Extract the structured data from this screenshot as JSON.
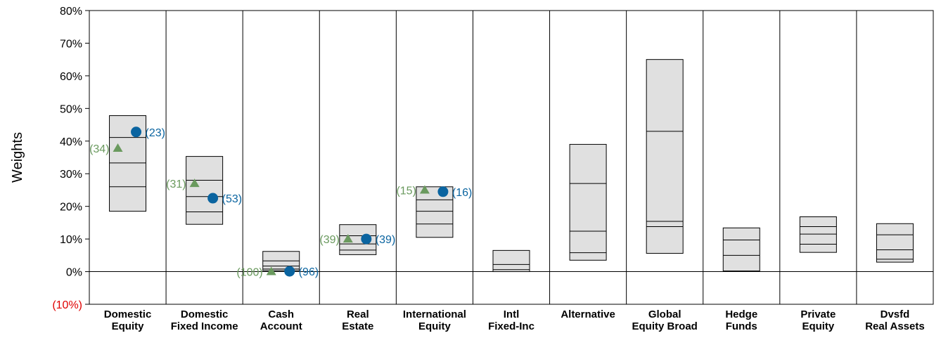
{
  "chart_data": {
    "type": "floating-bar",
    "ylabel": "Weights",
    "ylim": [
      -10,
      80
    ],
    "y_ticks": [
      {
        "value": 80,
        "label": "80%"
      },
      {
        "value": 70,
        "label": "70%"
      },
      {
        "value": 60,
        "label": "60%"
      },
      {
        "value": 50,
        "label": "50%"
      },
      {
        "value": 40,
        "label": "40%"
      },
      {
        "value": 30,
        "label": "30%"
      },
      {
        "value": 20,
        "label": "20%"
      },
      {
        "value": 10,
        "label": "10%"
      },
      {
        "value": 0,
        "label": "0%"
      },
      {
        "value": -10,
        "label": "(10%)"
      }
    ],
    "colors": {
      "negative_tick": "#e00000",
      "box_fill": "#e0e0e0",
      "triangle": "#6a9a5e",
      "circle": "#0a64a0"
    },
    "categories": [
      {
        "line1": "Domestic",
        "line2": "Equity",
        "box": {
          "low": 18.5,
          "high": 47.8,
          "lines": [
            26,
            33.3,
            41.1
          ]
        },
        "triangle": {
          "value": 37.8,
          "label": "(34)"
        },
        "circle": {
          "value": 42.8,
          "label": "(23)"
        }
      },
      {
        "line1": "Domestic",
        "line2": "Fixed Income",
        "box": {
          "low": 14.5,
          "high": 35.3,
          "lines": [
            18.3,
            23,
            28
          ]
        },
        "triangle": {
          "value": 27,
          "label": "(31)"
        },
        "circle": {
          "value": 22.5,
          "label": "(53)"
        }
      },
      {
        "line1": "Cash",
        "line2": "Account",
        "box": {
          "low": 0.3,
          "high": 6.2,
          "lines": [
            0.8,
            1.7,
            3.3
          ]
        },
        "triangle": {
          "value": 0,
          "label": "(100)"
        },
        "circle": {
          "value": 0.1,
          "label": "(96)"
        }
      },
      {
        "line1": "Real",
        "line2": "Estate",
        "box": {
          "low": 5.2,
          "high": 14.4,
          "lines": [
            6.6,
            8.5,
            11
          ]
        },
        "triangle": {
          "value": 10,
          "label": "(39)"
        },
        "circle": {
          "value": 10,
          "label": "(39)"
        }
      },
      {
        "line1": "International",
        "line2": "Equity",
        "box": {
          "low": 10.5,
          "high": 26,
          "lines": [
            14.6,
            18.5,
            22
          ]
        },
        "triangle": {
          "value": 25,
          "label": "(15)"
        },
        "circle": {
          "value": 24.5,
          "label": "(16)"
        }
      },
      {
        "line1": "Intl",
        "line2": "Fixed-Inc",
        "box": {
          "low": 0,
          "high": 6.5,
          "lines": [
            0.6,
            2.2
          ]
        }
      },
      {
        "line1": "Alternative",
        "line2": "",
        "box": {
          "low": 3.5,
          "high": 39,
          "lines": [
            5.8,
            12.4,
            27
          ]
        }
      },
      {
        "line1": "Global",
        "line2": "Equity Broad",
        "box": {
          "low": 5.6,
          "high": 65,
          "lines": [
            13.8,
            15.4,
            43
          ]
        }
      },
      {
        "line1": "Hedge",
        "line2": "Funds",
        "box": {
          "low": 0.2,
          "high": 13.4,
          "lines": [
            5,
            9.7
          ]
        }
      },
      {
        "line1": "Private",
        "line2": "Equity",
        "box": {
          "low": 5.9,
          "high": 16.8,
          "lines": [
            8.4,
            11.5,
            13.8
          ]
        }
      },
      {
        "line1": "Dvsfd",
        "line2": "Real Assets",
        "box": {
          "low": 2.9,
          "high": 14.7,
          "lines": [
            3.8,
            6.7,
            11.3
          ]
        }
      }
    ]
  }
}
